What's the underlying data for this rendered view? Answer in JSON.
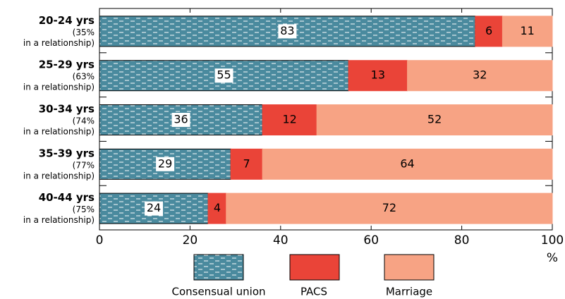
{
  "chart_data": {
    "type": "stacked-barh",
    "categories": [
      "20-24 yrs",
      "25-29 yrs",
      "30-34 yrs",
      "35-39 yrs",
      "40-44 yrs"
    ],
    "category_notes": [
      {
        "share": "(35%",
        "text": "in a relationship)"
      },
      {
        "share": "(63%",
        "text": "in a relationship)"
      },
      {
        "share": "(74%",
        "text": "in a relationship)"
      },
      {
        "share": "(77%",
        "text": "in a relationship)"
      },
      {
        "share": "(75%",
        "text": "in a relationship)"
      }
    ],
    "series": [
      {
        "name": "Consensual union",
        "color": "#4a8a9e",
        "values": [
          83,
          55,
          36,
          29,
          24
        ]
      },
      {
        "name": "PACS",
        "color": "#ea4438",
        "values": [
          6,
          13,
          12,
          7,
          4
        ]
      },
      {
        "name": "Marriage",
        "color": "#f7a384",
        "values": [
          11,
          32,
          52,
          64,
          72
        ]
      }
    ],
    "xlim": [
      0,
      100
    ],
    "xticks": [
      0,
      20,
      40,
      60,
      80,
      100
    ],
    "x_unit": "%"
  }
}
